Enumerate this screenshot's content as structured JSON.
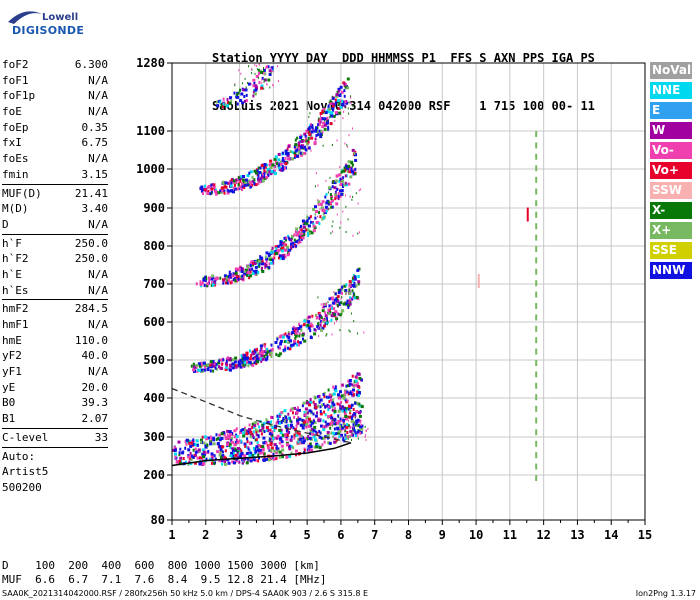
{
  "logo": {
    "line1": "Lowell",
    "line2": "DIGISONDE"
  },
  "header": {
    "line1": "Station YYYY DAY  DDD HHMMSS P1  FFS S AXN PPS IGA PS",
    "line2": "SaoLuis 2021 Nov10 314 042000 RSF    1 715 100 00- 11"
  },
  "params": {
    "group1": [
      {
        "label": "foF2",
        "value": "6.300"
      },
      {
        "label": "foF1",
        "value": "N/A"
      },
      {
        "label": "foF1p",
        "value": "N/A"
      },
      {
        "label": "foE",
        "value": "N/A"
      },
      {
        "label": "foEp",
        "value": "0.35"
      },
      {
        "label": "fxI",
        "value": "6.75"
      },
      {
        "label": "foEs",
        "value": "N/A"
      },
      {
        "label": "fmin",
        "value": "3.15"
      }
    ],
    "group2": [
      {
        "label": "MUF(D)",
        "value": "21.41"
      },
      {
        "label": "M(D)",
        "value": "3.40"
      },
      {
        "label": "D",
        "value": "N/A"
      }
    ],
    "group3": [
      {
        "label": "h`F",
        "value": "250.0"
      },
      {
        "label": "h`F2",
        "value": "250.0"
      },
      {
        "label": "h`E",
        "value": "N/A"
      },
      {
        "label": "h`Es",
        "value": "N/A"
      }
    ],
    "group4": [
      {
        "label": "hmF2",
        "value": "284.5"
      },
      {
        "label": "hmF1",
        "value": "N/A"
      },
      {
        "label": "hmE",
        "value": "110.0"
      },
      {
        "label": "yF2",
        "value": "40.0"
      },
      {
        "label": "yF1",
        "value": "N/A"
      },
      {
        "label": "yE",
        "value": "20.0"
      },
      {
        "label": "B0",
        "value": "39.3"
      },
      {
        "label": "B1",
        "value": "2.07"
      }
    ],
    "group5": [
      {
        "label": "C-level",
        "value": "33"
      }
    ],
    "auto": [
      "Auto:",
      "Artist5",
      "500200"
    ]
  },
  "legend": [
    {
      "label": "NoVal",
      "color": "#a0a0a0"
    },
    {
      "label": "NNE",
      "color": "#00d8f0"
    },
    {
      "label": "E",
      "color": "#30a0f0"
    },
    {
      "label": "W",
      "color": "#a000a0"
    },
    {
      "label": "Vo-",
      "color": "#f040b0"
    },
    {
      "label": "Vo+",
      "color": "#e8002c"
    },
    {
      "label": "SSW",
      "color": "#f8b0b0"
    },
    {
      "label": "X-",
      "color": "#087808"
    },
    {
      "label": "X+",
      "color": "#78b860"
    },
    {
      "label": "SSE",
      "color": "#d0d000"
    },
    {
      "label": "NNW",
      "color": "#1010e0"
    }
  ],
  "chart_data": {
    "type": "scatter",
    "xlim": [
      1,
      15
    ],
    "ylim": [
      80,
      1280
    ],
    "x_ticks": [
      "1",
      "2",
      "3",
      "4",
      "5",
      "6",
      "7",
      "8",
      "9",
      "10",
      "11",
      "12",
      "13",
      "14",
      "15"
    ],
    "y_ticks": [
      "80",
      "200",
      "300",
      "400",
      "500",
      "600",
      "700",
      "800",
      "900",
      "1000",
      "1100",
      "1280"
    ],
    "y_tick_values": [
      80,
      200,
      300,
      400,
      500,
      600,
      700,
      800,
      900,
      1000,
      1100,
      1280
    ],
    "grid": true,
    "traces": [
      {
        "name": "1-hop",
        "f_start": 1.0,
        "h_start": 250,
        "f_end": 6.6,
        "h_end": 360
      },
      {
        "name": "2-hop",
        "f_start": 1.5,
        "h_start": 478,
        "f_end": 6.5,
        "h_end": 690
      },
      {
        "name": "3-hop",
        "f_start": 1.7,
        "h_start": 705,
        "f_end": 6.4,
        "h_end": 1010
      },
      {
        "name": "4-hop",
        "f_start": 1.8,
        "h_start": 945,
        "f_end": 6.2,
        "h_end": 1200
      },
      {
        "name": "5-hop",
        "f_start": 2.3,
        "h_start": 1170,
        "f_end": 4.0,
        "h_end": 1280
      }
    ],
    "profile": [
      [
        1.0,
        225
      ],
      [
        2.0,
        238
      ],
      [
        3.0,
        244
      ],
      [
        4.0,
        250
      ],
      [
        5.0,
        258
      ],
      [
        5.8,
        270
      ],
      [
        6.3,
        285
      ]
    ],
    "profile_topside": [
      [
        1.0,
        425
      ],
      [
        2.0,
        390
      ],
      [
        3.0,
        355
      ],
      [
        4.0,
        330
      ],
      [
        5.0,
        310
      ],
      [
        6.3,
        285
      ]
    ],
    "isolated_points": [
      {
        "f": 10.05,
        "h": 700,
        "color": "#f8b0b0"
      },
      {
        "f": 11.5,
        "h": 875,
        "color": "#e8002c"
      },
      {
        "f": 11.75,
        "h": 700,
        "color": "#78b860"
      }
    ]
  },
  "bottom": {
    "d_row": "D    100  200  400  600  800 1000 1500 3000 [km]",
    "muf_row": "MUF  6.6  6.7  7.1  7.6  8.4  9.5 12.8 21.4 [MHz]",
    "footer": "SAA0K_2021314042000.RSF / 280fx256h 50 kHz 5.0 km / DPS-4 SAA0K 903 / 2.6 S 315.8 E",
    "footer_right": "Ion2Png 1.3.17"
  }
}
